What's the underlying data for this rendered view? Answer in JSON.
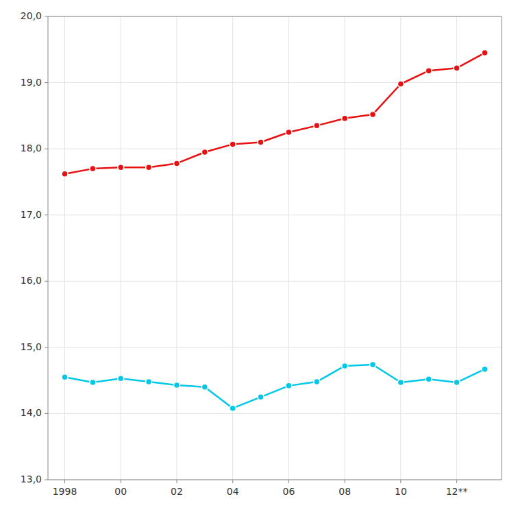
{
  "chart_data": {
    "type": "line",
    "x": [
      1998,
      1999,
      2000,
      2001,
      2002,
      2003,
      2004,
      2005,
      2006,
      2007,
      2008,
      2009,
      2010,
      2011,
      2012,
      2013
    ],
    "series": [
      {
        "color": "#e81010",
        "marker": "circle",
        "line_style": "solid",
        "values": [
          17.62,
          17.7,
          17.72,
          17.72,
          17.78,
          17.95,
          18.07,
          18.1,
          18.25,
          18.35,
          18.46,
          18.52,
          18.98,
          19.18,
          19.22,
          19.45
        ]
      },
      {
        "color": "#00c8e8",
        "marker": "circle",
        "line_style": "solid",
        "values": [
          14.55,
          14.47,
          14.53,
          14.48,
          14.43,
          14.4,
          14.08,
          14.25,
          14.42,
          14.48,
          14.72,
          14.74,
          14.47,
          14.52,
          14.47,
          14.67
        ]
      }
    ],
    "xlim": [
      1997.4,
      2013.6
    ],
    "xticks": [
      1998,
      {
        "value": 2000,
        "label": "00"
      },
      {
        "value": 2002,
        "label": "02"
      },
      {
        "value": 2004,
        "label": "04"
      },
      {
        "value": 2006,
        "label": "06"
      },
      {
        "value": 2008,
        "label": "08"
      },
      {
        "value": 2010,
        "label": "10"
      },
      {
        "value": 2012,
        "label": "12**"
      }
    ],
    "ylim": [
      13.0,
      20.0
    ],
    "yticks": [
      {
        "value": 13.0,
        "label": "13,0"
      },
      {
        "value": 14.0,
        "label": "14,0"
      },
      {
        "value": 15.0,
        "label": "15,0"
      },
      {
        "value": 16.0,
        "label": "16,0"
      },
      {
        "value": 17.0,
        "label": "17,0"
      },
      {
        "value": 18.0,
        "label": "18,0"
      },
      {
        "value": 19.0,
        "label": "19,0"
      },
      {
        "value": 20.0,
        "label": "20,0"
      }
    ],
    "grid": true
  }
}
